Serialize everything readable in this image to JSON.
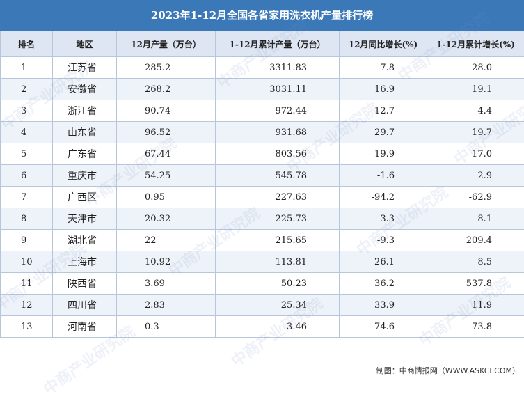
{
  "title": "2023年1-12月全国各省家用洗衣机产量排行榜",
  "headers": [
    "排名",
    "地区",
    "12月产量（万台）",
    "1-12月累计产量（万台）",
    "12月同比增长(%)",
    "1-12月累计增长(%)"
  ],
  "rows": [
    {
      "rank": "1",
      "region": "江苏省",
      "dec_output": "285.2",
      "cum_output": "3311.83",
      "dec_yoy": "7.8",
      "cum_growth": "28.0"
    },
    {
      "rank": "2",
      "region": "安徽省",
      "dec_output": "268.2",
      "cum_output": "3031.11",
      "dec_yoy": "16.9",
      "cum_growth": "19.1"
    },
    {
      "rank": "3",
      "region": "浙江省",
      "dec_output": "90.74",
      "cum_output": "972.44",
      "dec_yoy": "12.7",
      "cum_growth": "4.4"
    },
    {
      "rank": "4",
      "region": "山东省",
      "dec_output": "96.52",
      "cum_output": "931.68",
      "dec_yoy": "29.7",
      "cum_growth": "19.7"
    },
    {
      "rank": "5",
      "region": "广东省",
      "dec_output": "67.44",
      "cum_output": "803.56",
      "dec_yoy": "19.9",
      "cum_growth": "17.0"
    },
    {
      "rank": "6",
      "region": "重庆市",
      "dec_output": "54.25",
      "cum_output": "545.78",
      "dec_yoy": "-1.6",
      "cum_growth": "2.9"
    },
    {
      "rank": "7",
      "region": "广西区",
      "dec_output": "0.95",
      "cum_output": "227.63",
      "dec_yoy": "-94.2",
      "cum_growth": "-62.9"
    },
    {
      "rank": "8",
      "region": "天津市",
      "dec_output": "20.32",
      "cum_output": "225.73",
      "dec_yoy": "3.3",
      "cum_growth": "8.1"
    },
    {
      "rank": "9",
      "region": "湖北省",
      "dec_output": "22",
      "cum_output": "215.65",
      "dec_yoy": "-9.3",
      "cum_growth": "209.4"
    },
    {
      "rank": "10",
      "region": "上海市",
      "dec_output": "10.92",
      "cum_output": "113.81",
      "dec_yoy": "26.1",
      "cum_growth": "8.5"
    },
    {
      "rank": "11",
      "region": "陕西省",
      "dec_output": "3.69",
      "cum_output": "50.23",
      "dec_yoy": "36.2",
      "cum_growth": "537.8"
    },
    {
      "rank": "12",
      "region": "四川省",
      "dec_output": "2.83",
      "cum_output": "25.34",
      "dec_yoy": "33.9",
      "cum_growth": "11.9"
    },
    {
      "rank": "13",
      "region": "河南省",
      "dec_output": "0.3",
      "cum_output": "3.46",
      "dec_yoy": "-74.6",
      "cum_growth": "-73.8"
    }
  ],
  "watermark": "中商产业研究院",
  "source": "制图：中商情报网（WWW.ASKCI.COM）"
}
